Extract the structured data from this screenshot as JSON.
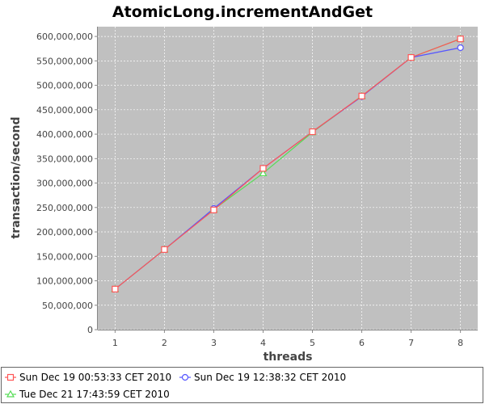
{
  "chart_data": {
    "type": "line",
    "title": "AtomicLong.incrementAndGet",
    "xlabel": "threads",
    "ylabel": "transaction/second",
    "x": [
      1,
      2,
      3,
      4,
      5,
      6,
      7,
      8
    ],
    "xlim": [
      0.65,
      8.35
    ],
    "ylim": [
      0,
      620000000
    ],
    "yticks": [
      0,
      50000000,
      100000000,
      150000000,
      200000000,
      250000000,
      300000000,
      350000000,
      400000000,
      450000000,
      500000000,
      550000000,
      600000000
    ],
    "ytick_labels": [
      "0",
      "50,000,000",
      "100,000,000",
      "150,000,000",
      "200,000,000",
      "250,000,000",
      "300,000,000",
      "350,000,000",
      "400,000,000",
      "450,000,000",
      "500,000,000",
      "550,000,000",
      "600,000,000"
    ],
    "xtick_labels": [
      "1",
      "2",
      "3",
      "4",
      "5",
      "6",
      "7",
      "8"
    ],
    "grid": true,
    "legend_position": "bottom",
    "plot_background": "#c0c0c0",
    "series": [
      {
        "name": "Tue Dec 21 17:43:59 CET 2010",
        "color": "#55dd55",
        "marker": "triangle",
        "values": [
          83000000,
          164000000,
          246000000,
          320000000,
          404000000,
          478000000,
          557000000,
          595000000
        ]
      },
      {
        "name": "Sun Dec 19 12:38:32 CET 2010",
        "color": "#5555ff",
        "marker": "circle",
        "values": [
          83000000,
          164000000,
          248000000,
          330000000,
          405000000,
          477000000,
          557000000,
          577000000
        ]
      },
      {
        "name": "Sun Dec 19 00:53:33 CET 2010",
        "color": "#ff5555",
        "marker": "square",
        "values": [
          83000000,
          164000000,
          245000000,
          330000000,
          405000000,
          478000000,
          557000000,
          595000000
        ]
      }
    ],
    "legend_order": [
      2,
      1,
      0
    ]
  }
}
